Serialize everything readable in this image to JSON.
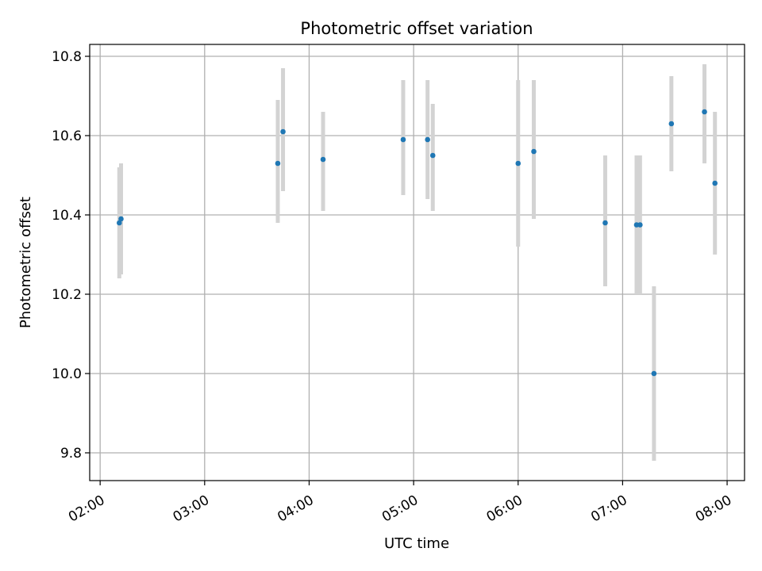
{
  "chart_data": {
    "type": "scatter",
    "title": "Photometric offset variation",
    "xlabel": "UTC time",
    "ylabel": "Photometric offset",
    "x_ticks": [
      "02:00",
      "03:00",
      "04:00",
      "05:00",
      "06:00",
      "07:00",
      "08:00"
    ],
    "y_ticks": [
      "9.8",
      "10.0",
      "10.2",
      "10.4",
      "10.6",
      "10.8"
    ],
    "xlim": [
      "01:54",
      "08:10"
    ],
    "ylim": [
      9.73,
      10.83
    ],
    "grid": true,
    "colors": {
      "marker": "#1f77b4",
      "errorbar": "#d3d3d3",
      "grid": "#b0b0b0"
    },
    "points": [
      {
        "time": "02:11",
        "y": 10.38,
        "err_low": 10.24,
        "err_high": 10.52
      },
      {
        "time": "02:12",
        "y": 10.39,
        "err_low": 10.25,
        "err_high": 10.53
      },
      {
        "time": "03:42",
        "y": 10.53,
        "err_low": 10.38,
        "err_high": 10.69
      },
      {
        "time": "03:45",
        "y": 10.61,
        "err_low": 10.46,
        "err_high": 10.77
      },
      {
        "time": "04:08",
        "y": 10.54,
        "err_low": 10.41,
        "err_high": 10.66
      },
      {
        "time": "04:54",
        "y": 10.59,
        "err_low": 10.45,
        "err_high": 10.74
      },
      {
        "time": "05:08",
        "y": 10.59,
        "err_low": 10.44,
        "err_high": 10.74
      },
      {
        "time": "05:11",
        "y": 10.55,
        "err_low": 10.41,
        "err_high": 10.68
      },
      {
        "time": "06:00",
        "y": 10.53,
        "err_low": 10.32,
        "err_high": 10.74
      },
      {
        "time": "06:09",
        "y": 10.56,
        "err_low": 10.39,
        "err_high": 10.74
      },
      {
        "time": "06:50",
        "y": 10.38,
        "err_low": 10.22,
        "err_high": 10.55
      },
      {
        "time": "07:08",
        "y": 10.375,
        "err_low": 10.2,
        "err_high": 10.55
      },
      {
        "time": "07:10",
        "y": 10.375,
        "err_low": 10.2,
        "err_high": 10.55
      },
      {
        "time": "07:18",
        "y": 10.0,
        "err_low": 9.78,
        "err_high": 10.22
      },
      {
        "time": "07:28",
        "y": 10.63,
        "err_low": 10.51,
        "err_high": 10.75
      },
      {
        "time": "07:47",
        "y": 10.66,
        "err_low": 10.53,
        "err_high": 10.78
      },
      {
        "time": "07:53",
        "y": 10.48,
        "err_low": 10.3,
        "err_high": 10.66
      }
    ]
  }
}
